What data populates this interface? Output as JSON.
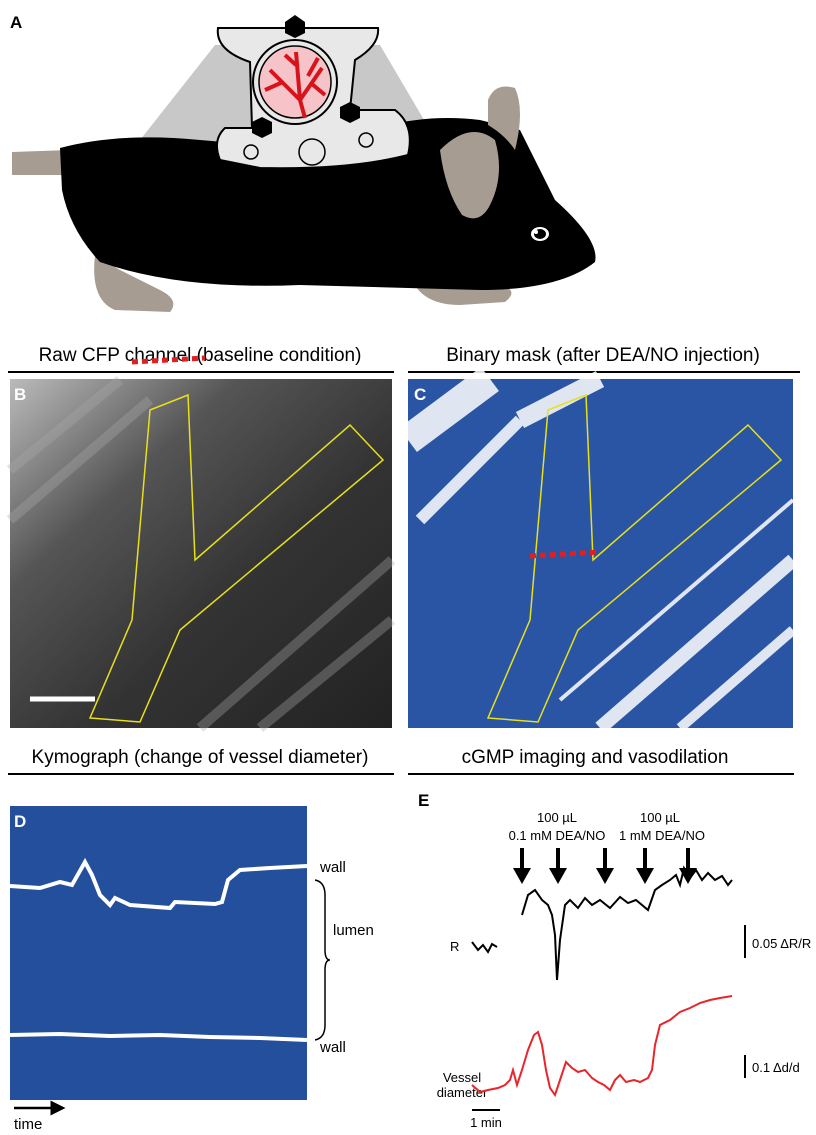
{
  "panels": [
    {
      "label": "A"
    },
    {
      "label": "B",
      "title": "Raw CFP channel (baseline condition)"
    },
    {
      "label": "C",
      "title": "Binary mask (after DEA/NO injection)"
    },
    {
      "label": "D",
      "title": "Kymograph (change of vessel diameter)",
      "annotations": {
        "wall_top": "wall",
        "lumen": "lumen",
        "wall_bottom": "wall",
        "time": "time"
      }
    },
    {
      "label": "E",
      "title": "cGMP imaging and vasodilation",
      "annotations": {
        "dose1_volume": "100 µL",
        "dose1": "0.1 mM DEA/NO",
        "dose2_volume": "100 µL",
        "dose2": "1 mM DEA/NO",
        "ratio_trace": "R",
        "ratio_scale": "0.05 ΔR/R",
        "diameter_trace_line1": "Vessel",
        "diameter_trace_line2": "diameter",
        "time_scale": "1 min",
        "diameter_scale": "0.1 Δd/d"
      }
    }
  ]
}
